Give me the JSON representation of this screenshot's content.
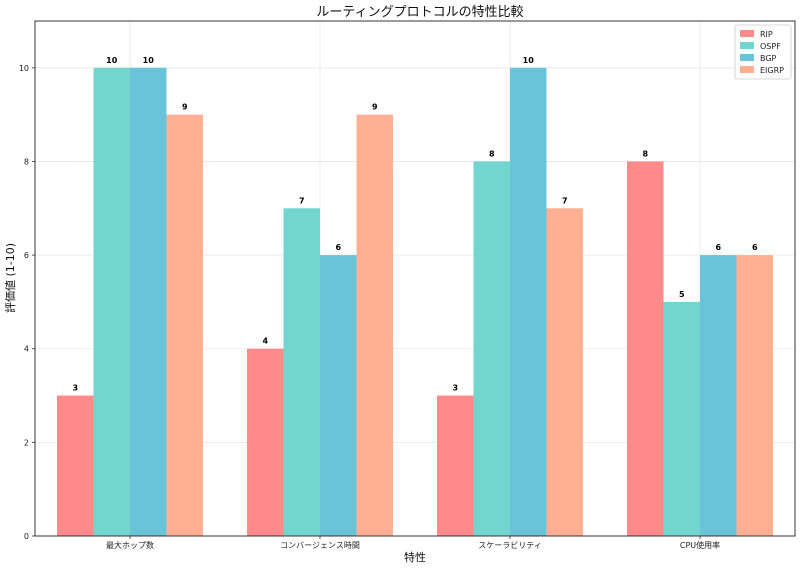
{
  "chart_data": {
    "type": "bar",
    "title": "ルーティングプロトコルの特性比較",
    "xlabel": "特性",
    "ylabel": "評価値 (1-10)",
    "categories": [
      "最大ホップ数",
      "コンバージェンス時間",
      "スケーラビリティ",
      "CPU使用率"
    ],
    "ylim": [
      0,
      11
    ],
    "yticks": [
      0,
      2,
      4,
      6,
      8,
      10
    ],
    "grid": true,
    "legend_position": "top-right",
    "series": [
      {
        "name": "RIP",
        "color": "#ff8a8a",
        "values": [
          3,
          4,
          3,
          8
        ]
      },
      {
        "name": "OSPF",
        "color": "#72d6cf",
        "values": [
          10,
          7,
          8,
          5
        ]
      },
      {
        "name": "BGP",
        "color": "#6ac4d9",
        "values": [
          10,
          6,
          10,
          6
        ]
      },
      {
        "name": "EIGRP",
        "color": "#ffb093",
        "values": [
          9,
          9,
          7,
          6
        ]
      }
    ]
  }
}
